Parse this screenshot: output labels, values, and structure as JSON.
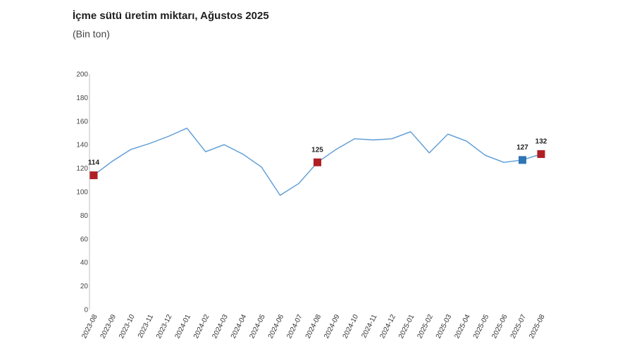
{
  "title": "İçme sütü üretim miktarı, Ağustos 2025",
  "subtitle": "(Bin ton)",
  "colors": {
    "line": "#5b9bd5",
    "marker_red": "#b01f24",
    "marker_blue": "#2e75b6",
    "axis": "#bfbfbf"
  },
  "chart_data": {
    "type": "line",
    "title": "İçme sütü üretim miktarı, Ağustos 2025",
    "ylabel": "(Bin ton)",
    "xlabel": "",
    "ylim": [
      0,
      200
    ],
    "yticks": [
      0,
      20,
      40,
      60,
      80,
      100,
      120,
      140,
      160,
      180,
      200
    ],
    "grid": false,
    "categories": [
      "2023-08",
      "2023-09",
      "2023-10",
      "2023-11",
      "2023-12",
      "2024-01",
      "2024-02",
      "2024-03",
      "2024-04",
      "2024-05",
      "2024-06",
      "2024-07",
      "2024-08",
      "2024-09",
      "2024-10",
      "2024-11",
      "2024-12",
      "2025-01",
      "2025-02",
      "2025-03",
      "2025-04",
      "2025-05",
      "2025-06",
      "2025-07",
      "2025-08"
    ],
    "series": [
      {
        "values": [
          114,
          126,
          136,
          141,
          147,
          154,
          134,
          140,
          132,
          121,
          97,
          107,
          125,
          136,
          145,
          144,
          145,
          151,
          133,
          149,
          143,
          131,
          125,
          127,
          132
        ]
      }
    ],
    "highlighted_points": [
      {
        "index": 0,
        "label": "114",
        "color": "red"
      },
      {
        "index": 12,
        "label": "125",
        "color": "red"
      },
      {
        "index": 23,
        "label": "127",
        "color": "blue"
      },
      {
        "index": 24,
        "label": "132",
        "color": "red"
      }
    ]
  }
}
